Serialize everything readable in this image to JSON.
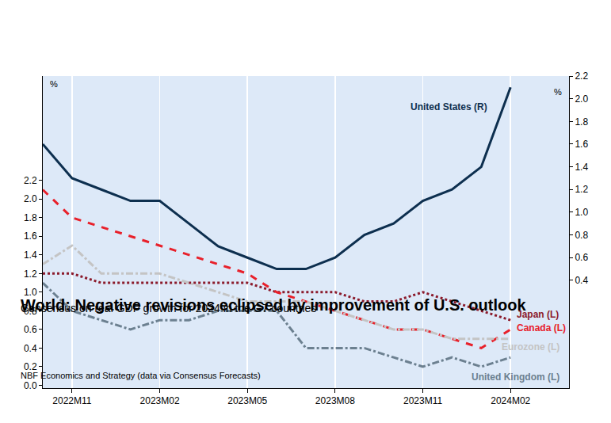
{
  "chart_data": {
    "type": "line",
    "title": "World: Negative revisions eclipsed by improvement of U.S. outlook",
    "subtitle": "Consensus on real GDP growth for 2024 in the G7 countries",
    "source": "NBF Economics and Strategy (data via Consensus Forecasts)",
    "ylabel": "%",
    "y2label": "%",
    "categories": [
      null,
      "2022M11",
      null,
      null,
      "2023M02",
      null,
      null,
      "2023M05",
      null,
      null,
      "2023M08",
      null,
      null,
      "2023M11",
      null,
      null,
      "2024M02",
      null,
      null
    ],
    "ylim": [
      -0.03,
      3.32
    ],
    "yticks": [
      {
        "value": 0,
        "label": "0.0"
      },
      0.2,
      0.4,
      0.6,
      0.8,
      {
        "value": 1,
        "label": "1.0"
      },
      1.2,
      1.4,
      1.6,
      1.8,
      {
        "value": 2,
        "label": "2.0"
      },
      2.2
    ],
    "y2lim": [
      -0.55,
      2.2
    ],
    "y2ticks": [
      0.4,
      0.6,
      0.8,
      {
        "value": 1,
        "label": "1.0"
      },
      1.2,
      1.4,
      1.6,
      1.8,
      {
        "value": 2,
        "label": "2.0"
      },
      2.2
    ],
    "grid": "x",
    "series": [
      {
        "name": "United States (R)",
        "axis": "y2",
        "color": "#0d2f4f",
        "line_style": "solid",
        "values": [
          1.6,
          1.3,
          1.2,
          1.1,
          1.1,
          0.9,
          0.7,
          0.6,
          0.5,
          0.5,
          0.6,
          0.8,
          0.9,
          1.1,
          1.2,
          1.4,
          2.1,
          null,
          null
        ]
      },
      {
        "name": "Japan (L)",
        "color": "#8b1a2b",
        "line_style": "dot",
        "values": [
          1.2,
          1.2,
          1.1,
          1.1,
          1.1,
          1.1,
          1.1,
          1.1,
          1.0,
          1.0,
          1.0,
          0.9,
          0.9,
          1.0,
          0.9,
          0.8,
          0.7,
          null,
          null
        ]
      },
      {
        "name": "Canada (L)",
        "color": "#e8202a",
        "line_style": "dash",
        "values": [
          2.1,
          1.8,
          1.7,
          1.6,
          1.5,
          1.4,
          1.3,
          1.2,
          1.0,
          0.9,
          0.8,
          0.7,
          0.6,
          0.6,
          0.5,
          0.4,
          0.6,
          null,
          null
        ]
      },
      {
        "name": "Eurozone (L)",
        "color": "#c4c4c4",
        "line_style": "dashdot",
        "values": [
          1.3,
          1.5,
          1.2,
          1.2,
          1.2,
          1.1,
          1.0,
          0.9,
          0.9,
          0.9,
          0.8,
          0.7,
          0.6,
          0.6,
          0.5,
          0.5,
          0.5,
          null,
          null
        ]
      },
      {
        "name": "United Kingdom (L)",
        "color": "#6c8090",
        "line_style": "dashdot",
        "values": [
          1.1,
          0.8,
          0.7,
          0.6,
          0.7,
          0.7,
          0.8,
          0.8,
          0.8,
          0.4,
          0.4,
          0.4,
          0.3,
          0.2,
          0.3,
          0.2,
          0.3,
          null,
          null
        ]
      }
    ]
  }
}
